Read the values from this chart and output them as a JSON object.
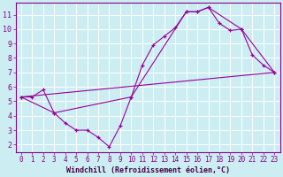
{
  "xlabel": "Windchill (Refroidissement éolien,°C)",
  "bg_color": "#cceef2",
  "line_color": "#990099",
  "grid_color": "#ffffff",
  "border_color": "#880088",
  "xlim": [
    -0.5,
    23.5
  ],
  "ylim": [
    1.5,
    11.8
  ],
  "xticks": [
    0,
    1,
    2,
    3,
    4,
    5,
    6,
    7,
    8,
    9,
    10,
    11,
    12,
    13,
    14,
    15,
    16,
    17,
    18,
    19,
    20,
    21,
    22,
    23
  ],
  "yticks": [
    2,
    3,
    4,
    5,
    6,
    7,
    8,
    9,
    10,
    11
  ],
  "line1_x": [
    0,
    1,
    2,
    3,
    4,
    5,
    6,
    7,
    8,
    9,
    10,
    11,
    12,
    13,
    14,
    15,
    16,
    17,
    18,
    19,
    20,
    21,
    22,
    23
  ],
  "line1_y": [
    5.3,
    5.3,
    5.8,
    4.2,
    3.5,
    3.0,
    3.0,
    2.5,
    1.85,
    3.3,
    5.3,
    7.5,
    8.9,
    9.5,
    10.1,
    11.2,
    11.2,
    11.5,
    10.4,
    9.9,
    10.0,
    8.2,
    7.5,
    7.0
  ],
  "line2_x": [
    0,
    3,
    10,
    15,
    16,
    17,
    20,
    23
  ],
  "line2_y": [
    5.3,
    4.2,
    5.3,
    11.2,
    11.2,
    11.5,
    10.0,
    7.0
  ],
  "line3_x": [
    0,
    23
  ],
  "line3_y": [
    5.3,
    7.0
  ],
  "tick_fontsize": 5.5,
  "xlabel_fontsize": 6.0,
  "tick_color": "#880088",
  "xlabel_color": "#440044"
}
